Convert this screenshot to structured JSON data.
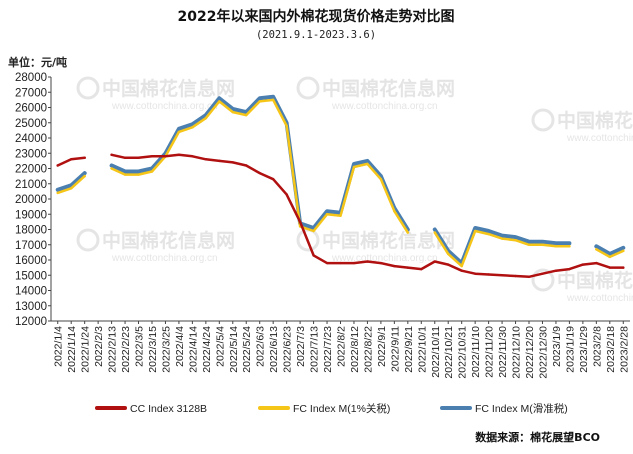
{
  "chart_data": {
    "type": "line",
    "title": "2022年以来国内外棉花现货价格走势对比图",
    "subtitle": "(2021.9.1-2023.3.6)",
    "unit_label": "单位：元/吨",
    "source": "数据来源：棉花展望BCO",
    "watermark": {
      "text": "中国棉花信息网",
      "url": "www.cottonchina.org.cn"
    },
    "ylim": [
      12000,
      28000
    ],
    "yticks": [
      12000,
      13000,
      14000,
      15000,
      16000,
      17000,
      18000,
      19000,
      20000,
      21000,
      22000,
      23000,
      24000,
      25000,
      26000,
      27000,
      28000
    ],
    "categories": [
      "2022/1/4",
      "2022/1/14",
      "2022/1/24",
      "2022/2/3",
      "2022/2/13",
      "2022/2/23",
      "2022/3/5",
      "2022/3/15",
      "2022/3/25",
      "2022/4/4",
      "2022/4/14",
      "2022/4/24",
      "2022/5/4",
      "2022/5/14",
      "2022/5/24",
      "2022/6/3",
      "2022/6/13",
      "2022/6/23",
      "2022/7/3",
      "2022/7/13",
      "2022/7/23",
      "2022/8/2",
      "2022/8/12",
      "2022/8/22",
      "2022/9/1",
      "2022/9/11",
      "2022/9/21",
      "2022/10/1",
      "2022/10/11",
      "2022/10/21",
      "2022/10/31",
      "2022/11/10",
      "2022/11/20",
      "2022/11/30",
      "2022/12/10",
      "2022/12/20",
      "2022/12/30",
      "2023/1/9",
      "2023/1/19",
      "2023/1/29",
      "2023/2/8",
      "2023/2/18",
      "2023/2/28"
    ],
    "grid": false,
    "legend_position": "bottom",
    "series": [
      {
        "name": "CC Index 3128B",
        "color": "#b01010",
        "values": [
          22200,
          22600,
          22700,
          null,
          22900,
          22700,
          22700,
          22800,
          22800,
          22900,
          22800,
          22600,
          22500,
          22400,
          22200,
          21700,
          21300,
          20300,
          18500,
          16300,
          15800,
          15800,
          15800,
          15900,
          15800,
          15600,
          15500,
          15400,
          15900,
          15700,
          15300,
          15100,
          15050,
          15000,
          14950,
          14900,
          15100,
          15300,
          15400,
          15700,
          15800,
          15500,
          15500
        ]
      },
      {
        "name": "FC Index M(1%关税)",
        "color": "#f5c518",
        "values": [
          20400,
          20700,
          21500,
          null,
          22000,
          21600,
          21600,
          21800,
          22800,
          24400,
          24700,
          25300,
          26400,
          25700,
          25500,
          26400,
          26500,
          24800,
          18200,
          17900,
          19000,
          18900,
          22100,
          22300,
          21300,
          19200,
          17800,
          null,
          17800,
          16400,
          15600,
          17900,
          17700,
          17400,
          17300,
          17000,
          17000,
          16900,
          16900,
          null,
          16700,
          16200,
          16600
        ]
      },
      {
        "name": "FC Index M(滑准税)",
        "color": "#4a7fb0",
        "values": [
          20600,
          20900,
          21700,
          null,
          22200,
          21800,
          21800,
          22000,
          23000,
          24600,
          24900,
          25500,
          26600,
          25900,
          25700,
          26600,
          26700,
          25000,
          18400,
          18100,
          19200,
          19100,
          22300,
          22500,
          21500,
          19400,
          18000,
          null,
          18000,
          16600,
          15800,
          18100,
          17900,
          17600,
          17500,
          17200,
          17200,
          17100,
          17100,
          null,
          16900,
          16400,
          16800
        ]
      }
    ]
  }
}
